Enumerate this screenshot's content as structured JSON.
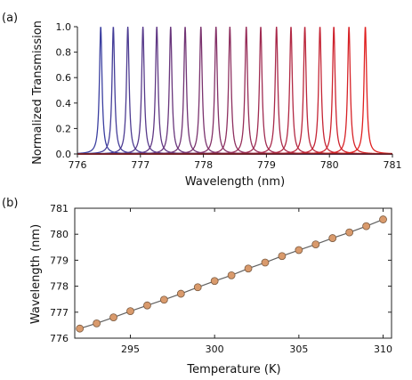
{
  "chart_data": [
    {
      "panel_label": "(a)",
      "type": "line",
      "xlabel": "Wavelength (nm)",
      "ylabel": "Normalized Transmission",
      "xlim": [
        776,
        781
      ],
      "ylim": [
        0.0,
        1.0
      ],
      "xticks": [
        "776",
        "777",
        "778",
        "779",
        "780",
        "781"
      ],
      "yticks": [
        "0.0",
        "0.2",
        "0.4",
        "0.6",
        "0.8",
        "1.0"
      ],
      "peak_shape": "lorentzian",
      "peak_half_width_nm": 0.025,
      "color_start": "#3b3fa0",
      "color_end": "#e02020",
      "peak_centers_nm": [
        776.37,
        776.57,
        776.8,
        777.04,
        777.26,
        777.48,
        777.71,
        777.96,
        778.2,
        778.42,
        778.68,
        778.91,
        779.16,
        779.39,
        779.61,
        779.85,
        780.07,
        780.31,
        780.57
      ]
    },
    {
      "panel_label": "(b)",
      "type": "scatter",
      "xlabel": "Temperature (K)",
      "ylabel": "Wavelength (nm)",
      "xlim": [
        291.7,
        310.5
      ],
      "ylim": [
        776,
        781
      ],
      "xticks": [
        "295",
        "300",
        "305",
        "310"
      ],
      "yticks": [
        "776",
        "777",
        "778",
        "779",
        "780",
        "781"
      ],
      "marker_color": "#d99a6c",
      "marker_edge": "#7a5a40",
      "line_color": "#606060",
      "x": [
        292,
        293,
        294,
        295,
        296,
        297,
        298,
        299,
        300,
        301,
        302,
        303,
        304,
        305,
        306,
        307,
        308,
        309,
        310
      ],
      "y": [
        776.37,
        776.57,
        776.8,
        777.04,
        777.26,
        777.48,
        777.71,
        777.96,
        778.2,
        778.42,
        778.68,
        778.91,
        779.16,
        779.39,
        779.61,
        779.85,
        780.07,
        780.31,
        780.57
      ]
    }
  ]
}
